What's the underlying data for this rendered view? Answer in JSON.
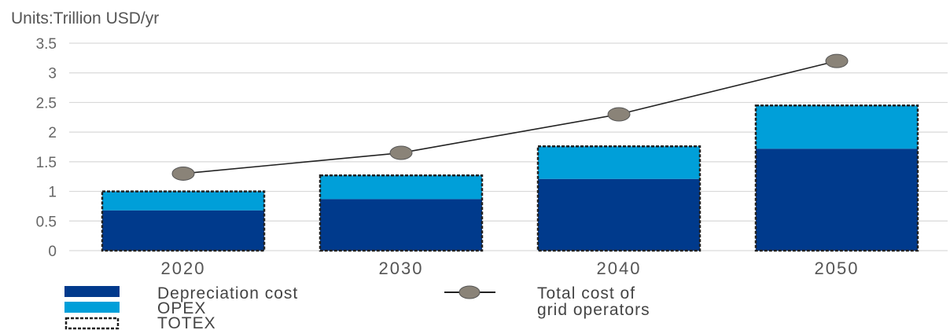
{
  "units_label": "Units:Trillion USD/yr",
  "colors": {
    "depreciation": "#003a8c",
    "opex": "#009fd9",
    "line": "#222222",
    "marker": "#8a8378",
    "grid": "#d9d9d9"
  },
  "legend": {
    "depreciation": "Depreciation cost",
    "opex": "OPEX",
    "totex": "TOTEX",
    "total_line1": "Total cost of",
    "total_line2": "grid operators"
  },
  "chart_data": {
    "type": "bar",
    "stacked": true,
    "categories": [
      "2020",
      "2030",
      "2040",
      "2050"
    ],
    "series": [
      {
        "name": "Depreciation cost",
        "values": [
          0.68,
          0.87,
          1.21,
          1.72
        ]
      },
      {
        "name": "OPEX",
        "values": [
          0.32,
          0.4,
          0.55,
          0.73
        ]
      }
    ],
    "totex": [
      1.0,
      1.27,
      1.76,
      2.45
    ],
    "line_series": {
      "name": "Total cost of grid operators",
      "values": [
        1.3,
        1.65,
        2.3,
        3.2
      ]
    },
    "ylim": [
      0,
      3.5
    ],
    "yticks": [
      "0",
      "0.5",
      "1",
      "1.5",
      "2",
      "2.5",
      "3",
      "3.5"
    ],
    "ytick_values": [
      0,
      0.5,
      1,
      1.5,
      2,
      2.5,
      3,
      3.5
    ],
    "grid": true,
    "legend_position": "bottom"
  }
}
